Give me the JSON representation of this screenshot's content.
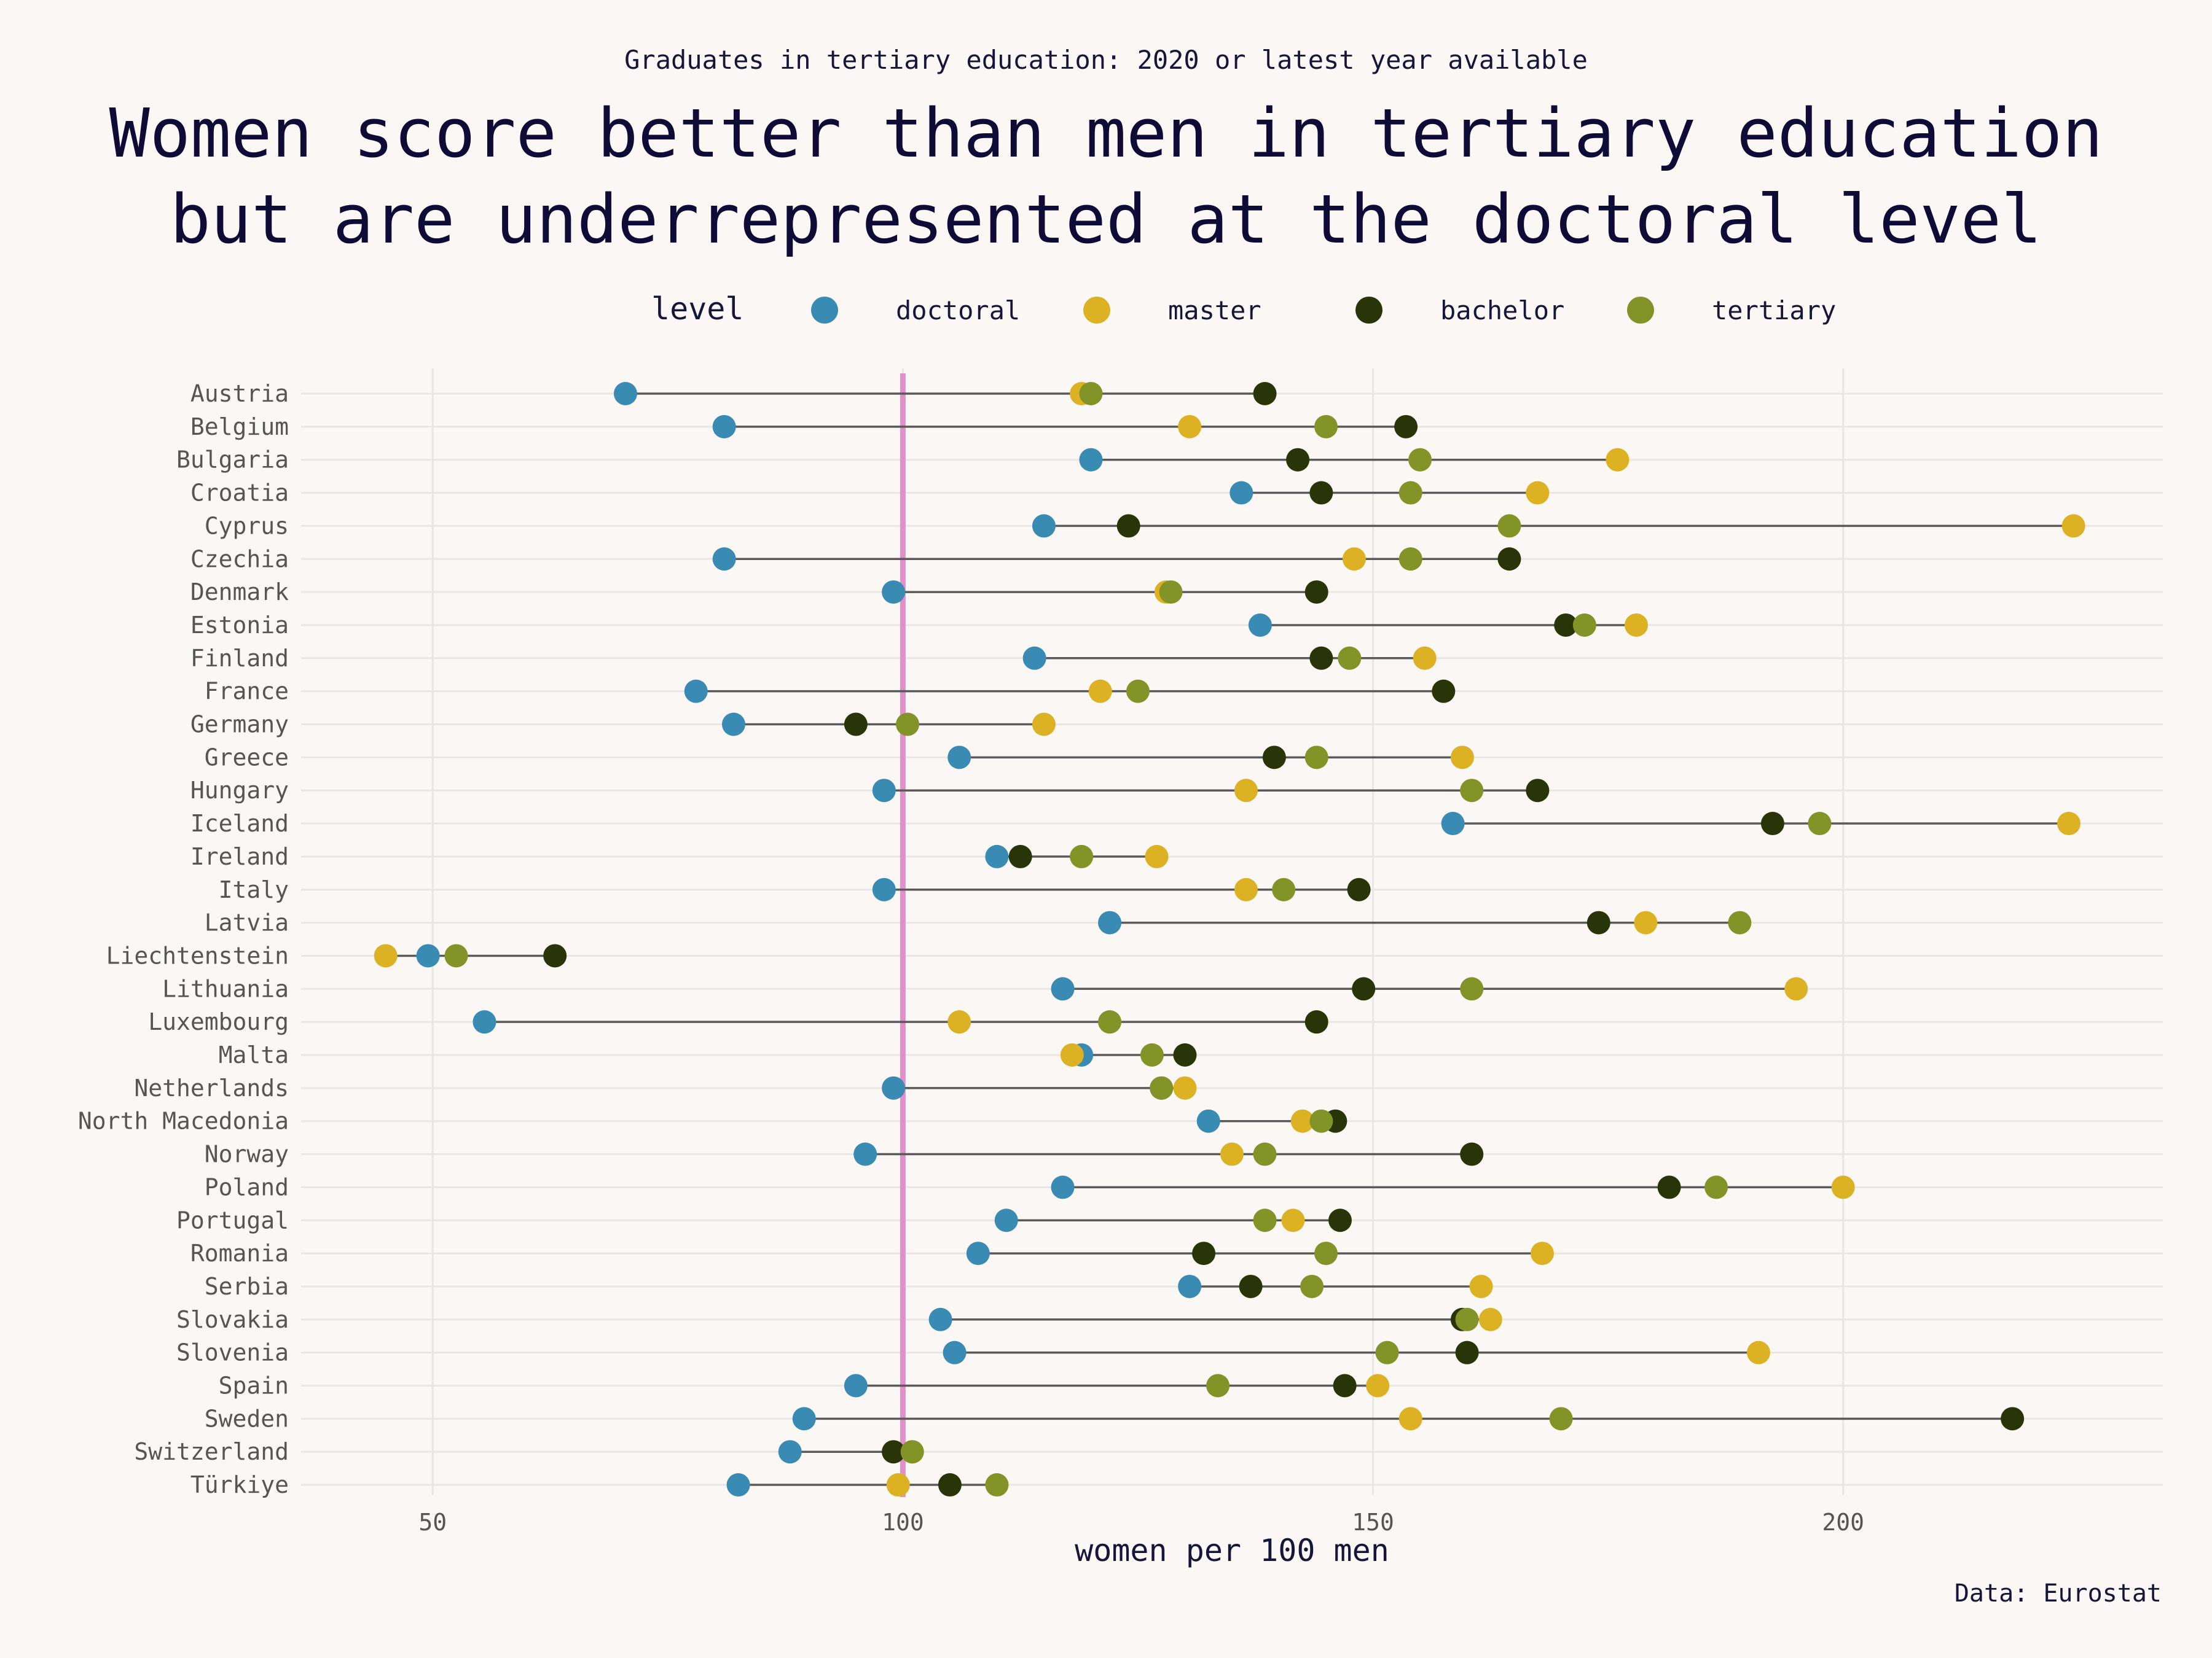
{
  "chart_data": {
    "type": "dumbbell",
    "subtitle": "Graduates in tertiary education: 2020 or latest year available",
    "title_lines": [
      "Women score better than men in tertiary education",
      "but are underrepresented at the doctoral level"
    ],
    "xlabel": "women per 100 men",
    "caption": "Data: Eurostat",
    "legend_title": "level",
    "legend_position": "top",
    "xlim": [
      36,
      234
    ],
    "x_ticks": [
      50,
      100,
      150,
      200
    ],
    "reference_line": 100,
    "grid": true,
    "colors": {
      "doctoral": "#3a8bb3",
      "master": "#dcb224",
      "bachelor": "#293508",
      "tertiary": "#829428",
      "reference": "#e38fcb",
      "segment": "#5a5a5a"
    },
    "series": [
      {
        "name": "doctoral",
        "key": "doctoral"
      },
      {
        "name": "master",
        "key": "master"
      },
      {
        "name": "bachelor",
        "key": "bachelor"
      },
      {
        "name": "tertiary",
        "key": "tertiary"
      }
    ],
    "countries": [
      {
        "name": "Austria",
        "doctoral": 70.5,
        "master": 119,
        "bachelor": 138.5,
        "tertiary": 120
      },
      {
        "name": "Belgium",
        "doctoral": 81,
        "master": 130.5,
        "bachelor": 153.5,
        "tertiary": 145
      },
      {
        "name": "Bulgaria",
        "doctoral": 120,
        "master": 176,
        "bachelor": 142,
        "tertiary": 155
      },
      {
        "name": "Croatia",
        "doctoral": 136,
        "master": 167.5,
        "bachelor": 144.5,
        "tertiary": 154
      },
      {
        "name": "Cyprus",
        "doctoral": 115,
        "master": 224.5,
        "bachelor": 124,
        "tertiary": 164.5
      },
      {
        "name": "Czechia",
        "doctoral": 81,
        "master": 148,
        "bachelor": 164.5,
        "tertiary": 154
      },
      {
        "name": "Denmark",
        "doctoral": 99,
        "master": 128,
        "bachelor": 144,
        "tertiary": 128.5
      },
      {
        "name": "Estonia",
        "doctoral": 138,
        "master": 178,
        "bachelor": 170.5,
        "tertiary": 172.5
      },
      {
        "name": "Finland",
        "doctoral": 114,
        "master": 155.5,
        "bachelor": 144.5,
        "tertiary": 147.5
      },
      {
        "name": "France",
        "doctoral": 78,
        "master": 121,
        "bachelor": 157.5,
        "tertiary": 125
      },
      {
        "name": "Germany",
        "doctoral": 82,
        "master": 115,
        "bachelor": 95,
        "tertiary": 100.5
      },
      {
        "name": "Greece",
        "doctoral": 106,
        "master": 159.5,
        "bachelor": 139.5,
        "tertiary": 144
      },
      {
        "name": "Hungary",
        "doctoral": 98,
        "master": 136.5,
        "bachelor": 167.5,
        "tertiary": 160.5
      },
      {
        "name": "Iceland",
        "doctoral": 158.5,
        "master": 224,
        "bachelor": 192.5,
        "tertiary": 197.5
      },
      {
        "name": "Ireland",
        "doctoral": 110,
        "master": 127,
        "bachelor": 112.5,
        "tertiary": 119
      },
      {
        "name": "Italy",
        "doctoral": 98,
        "master": 136.5,
        "bachelor": 148.5,
        "tertiary": 140.5
      },
      {
        "name": "Latvia",
        "doctoral": 122,
        "master": 179,
        "bachelor": 174,
        "tertiary": 189
      },
      {
        "name": "Liechtenstein",
        "doctoral": 49.5,
        "master": 45,
        "bachelor": 63,
        "tertiary": 52.5
      },
      {
        "name": "Lithuania",
        "doctoral": 117,
        "master": 195,
        "bachelor": 149,
        "tertiary": 160.5
      },
      {
        "name": "Luxembourg",
        "doctoral": 55.5,
        "master": 106,
        "bachelor": 144,
        "tertiary": 122
      },
      {
        "name": "Malta",
        "doctoral": 119,
        "master": 118,
        "bachelor": 130,
        "tertiary": 126.5
      },
      {
        "name": "Netherlands",
        "doctoral": 99,
        "master": 130,
        "bachelor": 127.5,
        "tertiary": 127.5
      },
      {
        "name": "North Macedonia",
        "doctoral": 132.5,
        "master": 142.5,
        "bachelor": 146,
        "tertiary": 144.5
      },
      {
        "name": "Norway",
        "doctoral": 96,
        "master": 135,
        "bachelor": 160.5,
        "tertiary": 138.5
      },
      {
        "name": "Poland",
        "doctoral": 117,
        "master": 200,
        "bachelor": 181.5,
        "tertiary": 186.5
      },
      {
        "name": "Portugal",
        "doctoral": 111,
        "master": 141.5,
        "bachelor": 146.5,
        "tertiary": 138.5
      },
      {
        "name": "Romania",
        "doctoral": 108,
        "master": 168,
        "bachelor": 132,
        "tertiary": 145
      },
      {
        "name": "Serbia",
        "doctoral": 130.5,
        "master": 161.5,
        "bachelor": 137,
        "tertiary": 143.5
      },
      {
        "name": "Slovakia",
        "doctoral": 104,
        "master": 162.5,
        "bachelor": 159.5,
        "tertiary": 160
      },
      {
        "name": "Slovenia",
        "doctoral": 105.5,
        "master": 191,
        "bachelor": 160,
        "tertiary": 151.5
      },
      {
        "name": "Spain",
        "doctoral": 95,
        "master": 150.5,
        "bachelor": 147,
        "tertiary": 133.5
      },
      {
        "name": "Sweden",
        "doctoral": 89.5,
        "master": 154,
        "bachelor": 218,
        "tertiary": 170
      },
      {
        "name": "Switzerland",
        "doctoral": 88,
        "master": 101,
        "bachelor": 99,
        "tertiary": 101
      },
      {
        "name": "Türkiye",
        "doctoral": 82.5,
        "master": 99.5,
        "bachelor": 105,
        "tertiary": 110
      }
    ]
  }
}
